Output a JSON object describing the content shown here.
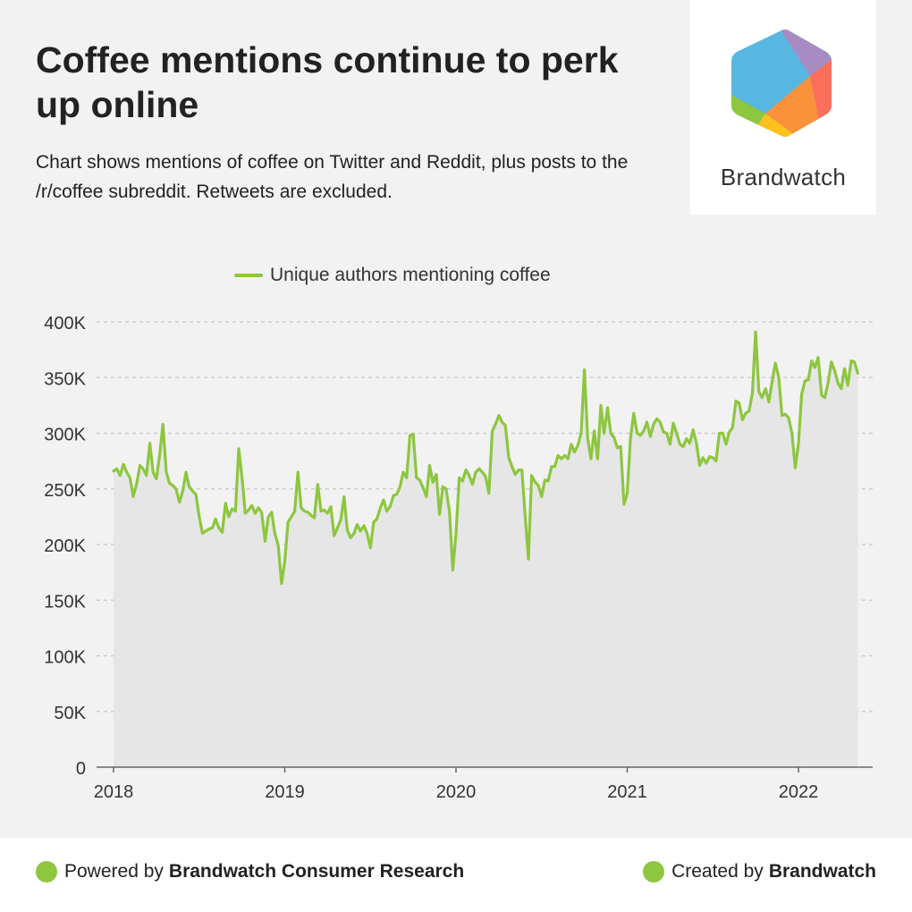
{
  "header": {
    "title": "Coffee mentions continue to perk up online",
    "subtitle": "Chart shows mentions of coffee on Twitter and Reddit, plus posts to the /r/coffee subreddit. Retweets are excluded."
  },
  "logo": {
    "text": "Brandwatch",
    "icon": "brandwatch-hexagon-logo"
  },
  "footer": {
    "powered_prefix": "Powered by",
    "powered_name": "Brandwatch Consumer Research",
    "created_prefix": "Created by",
    "created_name": "Brandwatch"
  },
  "colors": {
    "line": "#8dc63f",
    "area": "#e6e6e6",
    "grid": "#c8c8c8",
    "background": "#f2f2f2"
  },
  "chart_data": {
    "type": "area",
    "legend": "Unique authors mentioning coffee",
    "legend_position": "top",
    "grid": true,
    "x_ticks": [
      "2018",
      "2019",
      "2020",
      "2021",
      "2022"
    ],
    "y_ticks": [
      "0",
      "50K",
      "100K",
      "150K",
      "200K",
      "250K",
      "300K",
      "350K",
      "400K"
    ],
    "ylim": [
      0,
      400000
    ],
    "xlim": [
      2018.0,
      2022.45
    ],
    "series": [
      {
        "name": "Unique authors mentioning coffee",
        "x": [
          2018.0,
          2018.019,
          2018.038,
          2018.058,
          2018.077,
          2018.096,
          2018.115,
          2018.135,
          2018.154,
          2018.173,
          2018.192,
          2018.212,
          2018.231,
          2018.25,
          2018.269,
          2018.288,
          2018.308,
          2018.327,
          2018.346,
          2018.365,
          2018.385,
          2018.404,
          2018.423,
          2018.442,
          2018.462,
          2018.481,
          2018.5,
          2018.519,
          2018.538,
          2018.558,
          2018.577,
          2018.596,
          2018.615,
          2018.635,
          2018.654,
          2018.673,
          2018.692,
          2018.712,
          2018.731,
          2018.75,
          2018.769,
          2018.788,
          2018.808,
          2018.827,
          2018.846,
          2018.865,
          2018.885,
          2018.904,
          2018.923,
          2018.942,
          2018.962,
          2018.981,
          2019.0,
          2019.019,
          2019.038,
          2019.058,
          2019.077,
          2019.096,
          2019.115,
          2019.135,
          2019.154,
          2019.173,
          2019.192,
          2019.212,
          2019.231,
          2019.25,
          2019.269,
          2019.288,
          2019.308,
          2019.327,
          2019.346,
          2019.365,
          2019.385,
          2019.404,
          2019.423,
          2019.442,
          2019.462,
          2019.481,
          2019.5,
          2019.519,
          2019.538,
          2019.558,
          2019.577,
          2019.596,
          2019.615,
          2019.635,
          2019.654,
          2019.673,
          2019.692,
          2019.712,
          2019.731,
          2019.75,
          2019.769,
          2019.788,
          2019.808,
          2019.827,
          2019.846,
          2019.865,
          2019.885,
          2019.904,
          2019.923,
          2019.942,
          2019.962,
          2019.981,
          2020.0,
          2020.019,
          2020.038,
          2020.058,
          2020.077,
          2020.096,
          2020.115,
          2020.135,
          2020.154,
          2020.173,
          2020.192,
          2020.212,
          2020.231,
          2020.25,
          2020.269,
          2020.288,
          2020.308,
          2020.327,
          2020.346,
          2020.365,
          2020.385,
          2020.404,
          2020.423,
          2020.442,
          2020.462,
          2020.481,
          2020.5,
          2020.519,
          2020.538,
          2020.558,
          2020.577,
          2020.596,
          2020.615,
          2020.635,
          2020.654,
          2020.673,
          2020.692,
          2020.712,
          2020.731,
          2020.75,
          2020.769,
          2020.788,
          2020.808,
          2020.827,
          2020.846,
          2020.865,
          2020.885,
          2020.904,
          2020.923,
          2020.942,
          2020.962,
          2020.981,
          2021.0,
          2021.019,
          2021.038,
          2021.058,
          2021.077,
          2021.096,
          2021.115,
          2021.135,
          2021.154,
          2021.173,
          2021.192,
          2021.212,
          2021.231,
          2021.25,
          2021.269,
          2021.288,
          2021.308,
          2021.327,
          2021.346,
          2021.365,
          2021.385,
          2021.404,
          2021.423,
          2021.442,
          2021.462,
          2021.481,
          2021.5,
          2021.519,
          2021.538,
          2021.558,
          2021.577,
          2021.596,
          2021.615,
          2021.635,
          2021.654,
          2021.673,
          2021.692,
          2021.712,
          2021.731,
          2021.75,
          2021.769,
          2021.788,
          2021.808,
          2021.827,
          2021.846,
          2021.865,
          2021.885,
          2021.904,
          2021.923,
          2021.942,
          2021.962,
          2021.981,
          2022.0,
          2022.019,
          2022.038,
          2022.058,
          2022.077,
          2022.096,
          2022.115,
          2022.135,
          2022.154,
          2022.173,
          2022.192,
          2022.212,
          2022.231,
          2022.25,
          2022.269,
          2022.288,
          2022.308,
          2022.327,
          2022.346
        ],
        "y": [
          266000,
          268000,
          262000,
          272000,
          265000,
          260000,
          243000,
          255000,
          271000,
          268000,
          262000,
          291000,
          265000,
          259000,
          280000,
          308000,
          265000,
          255000,
          253000,
          250000,
          238000,
          248000,
          265000,
          252000,
          248000,
          245000,
          225000,
          210000,
          212000,
          214000,
          215000,
          223000,
          215000,
          211000,
          237000,
          225000,
          232000,
          230000,
          286000,
          261000,
          228000,
          231000,
          235000,
          228000,
          233000,
          229000,
          203000,
          225000,
          229000,
          210000,
          199000,
          165000,
          185000,
          220000,
          225000,
          230000,
          265000,
          233000,
          230000,
          229000,
          226000,
          224000,
          254000,
          230000,
          231000,
          228000,
          234000,
          208000,
          215000,
          222000,
          243000,
          213000,
          206000,
          210000,
          218000,
          212000,
          217000,
          210000,
          197000,
          220000,
          223000,
          233000,
          240000,
          230000,
          234000,
          244000,
          245000,
          252000,
          265000,
          260000,
          298000,
          299000,
          260000,
          258000,
          251000,
          243000,
          271000,
          256000,
          263000,
          227000,
          252000,
          250000,
          230000,
          177000,
          210000,
          260000,
          257000,
          267000,
          262000,
          254000,
          265000,
          268000,
          265000,
          261000,
          246000,
          302000,
          308000,
          316000,
          310000,
          307000,
          278000,
          270000,
          263000,
          267000,
          267000,
          225000,
          187000,
          262000,
          256000,
          253000,
          243000,
          258000,
          257000,
          270000,
          270000,
          280000,
          277000,
          280000,
          277000,
          290000,
          283000,
          289000,
          300000,
          357000,
          295000,
          277000,
          302000,
          277000,
          325000,
          300000,
          323000,
          300000,
          296000,
          287000,
          288000,
          236000,
          246000,
          295000,
          318000,
          300000,
          298000,
          302000,
          310000,
          297000,
          308000,
          313000,
          310000,
          301000,
          300000,
          290000,
          309000,
          300000,
          290000,
          288000,
          295000,
          291000,
          303000,
          291000,
          271000,
          278000,
          273000,
          279000,
          278000,
          275000,
          300000,
          300000,
          290000,
          301000,
          305000,
          329000,
          327000,
          312000,
          318000,
          320000,
          336000,
          391000,
          337000,
          332000,
          340000,
          328000,
          346000,
          363000,
          350000,
          316000,
          317000,
          314000,
          300000,
          269000,
          290000,
          335000,
          347000,
          348000,
          365000,
          359000,
          368000,
          334000,
          332000,
          345000,
          364000,
          356000,
          345000,
          340000,
          358000,
          343000,
          365000,
          364000,
          354000
        ]
      }
    ]
  }
}
